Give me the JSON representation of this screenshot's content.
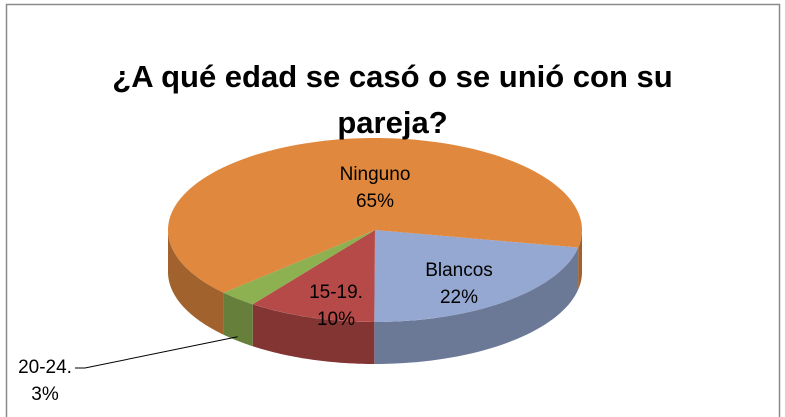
{
  "chart_data": {
    "type": "pie3d",
    "title": "¿A qué edad se casó o se unió con su pareja?",
    "categories": [
      "Blancos",
      "15-19.",
      "20-24.",
      "Ninguno"
    ],
    "values": [
      22,
      10,
      3,
      65
    ],
    "value_labels": [
      "22%",
      "10%",
      "3%",
      "65%"
    ],
    "colors": [
      "#95a8d2",
      "#b64a48",
      "#8db050",
      "#e0883e"
    ]
  }
}
